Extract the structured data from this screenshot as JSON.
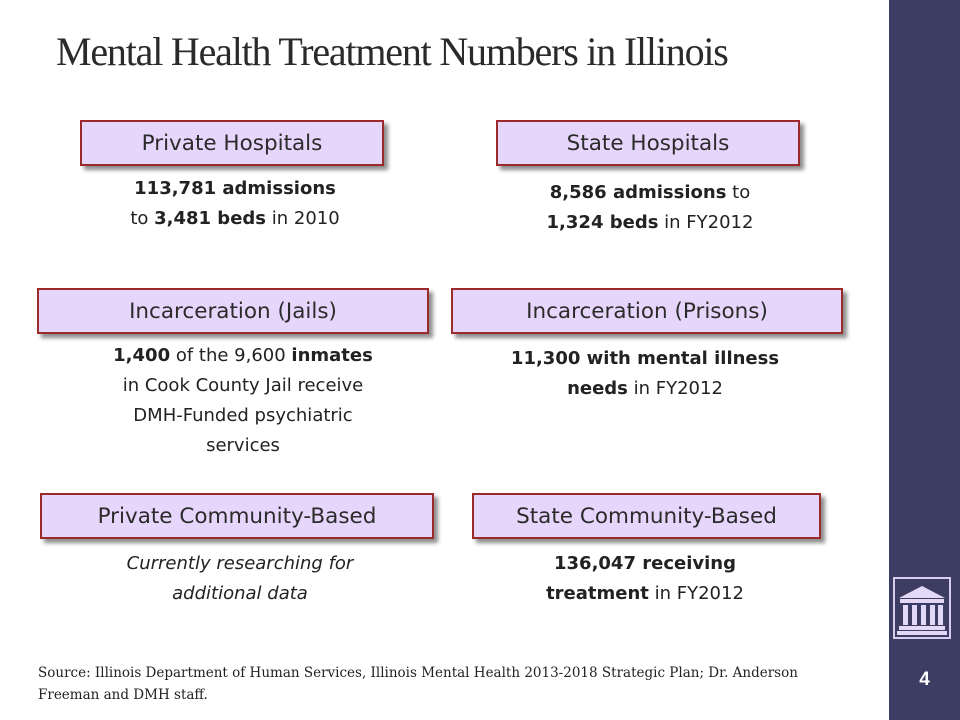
{
  "slide": {
    "title": "Mental Health Treatment Numbers in Illinois",
    "page_number": "4",
    "source": "Source: Illinois Department of Human Services, Illinois Mental Health 2013-2018 Strategic Plan; Dr. Anderson Freeman and DMH staff."
  },
  "colors": {
    "sidebar": "#3d3c63",
    "box_fill": "#e6d6fb",
    "box_border": "#9b2b2b"
  },
  "icon": "government-building-icon",
  "boxes": {
    "private_hospitals": "Private Hospitals",
    "state_hospitals": "State Hospitals",
    "jails": "Incarceration (Jails)",
    "prisons": "Incarceration (Prisons)",
    "private_community": "Private Community-Based",
    "state_community": "State Community-Based"
  },
  "details": {
    "private_hospitals": {
      "admissions": "113,781 admissions",
      "to": "to ",
      "beds": "3,481 beds",
      "year": " in 2010"
    },
    "state_hospitals": {
      "admissions": "8,586 admissions",
      "to": " to",
      "beds": "1,324 beds",
      "year": " in FY2012"
    },
    "jails": {
      "count": "1,400",
      "of_the": " of the 9,600",
      "inmates": "inmates",
      "rest": " in Cook County Jail receive DMH-Funded psychiatric services"
    },
    "prisons": {
      "bold": "11,300 with mental illness needs",
      "year": " in FY2012"
    },
    "private_community": {
      "text": "Currently researching for additional data"
    },
    "state_community": {
      "bold1": "136,047 receiving",
      "bold2": "treatment",
      "year": " in FY2012"
    }
  }
}
